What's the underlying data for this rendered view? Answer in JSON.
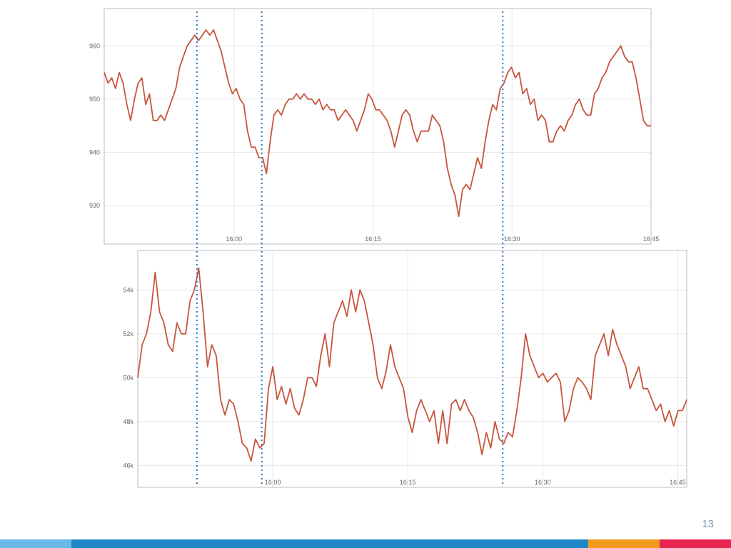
{
  "page": {
    "number": "13"
  },
  "colors": {
    "line": "#c8553d",
    "marker": "#1f77c4",
    "grid": "#e6e6e6",
    "frame": "#bdbdbd",
    "footer": [
      "#6bb7e8",
      "#1f87c8",
      "#f39b1e",
      "#e8264f"
    ]
  },
  "markers": {
    "times": [
      "15:56",
      "16:03",
      "16:29"
    ]
  },
  "chart_data": [
    {
      "type": "line",
      "title": "",
      "xlabel": "",
      "ylabel": "",
      "xlim": [
        "15:46",
        "16:45"
      ],
      "ylim": [
        922.8,
        967.0
      ],
      "xticks": [
        "16:00",
        "16:15",
        "16:30",
        "16:45"
      ],
      "yticks": [
        930,
        940,
        950,
        960
      ],
      "ytick_labels": [
        "930",
        "940",
        "950",
        "960"
      ],
      "grid": true,
      "series": [
        {
          "values": [
            [
              0,
              955
            ],
            [
              1,
              953
            ],
            [
              2,
              954
            ],
            [
              3,
              952
            ],
            [
              4,
              955
            ],
            [
              5,
              953
            ],
            [
              6,
              949
            ],
            [
              7,
              946
            ],
            [
              8,
              950
            ],
            [
              9,
              953
            ],
            [
              10,
              954
            ],
            [
              11,
              949
            ],
            [
              12,
              951
            ],
            [
              13,
              946
            ],
            [
              14,
              946
            ],
            [
              15,
              947
            ],
            [
              16,
              946
            ],
            [
              17,
              948
            ],
            [
              18,
              950
            ],
            [
              19,
              952
            ],
            [
              20,
              956
            ],
            [
              21,
              958
            ],
            [
              22,
              960
            ],
            [
              23,
              961
            ],
            [
              24,
              962
            ],
            [
              25,
              961
            ],
            [
              26,
              962
            ],
            [
              27,
              963
            ],
            [
              28,
              962
            ],
            [
              29,
              963
            ],
            [
              30,
              961
            ],
            [
              31,
              959
            ],
            [
              32,
              956
            ],
            [
              33,
              953
            ],
            [
              34,
              951
            ],
            [
              35,
              952
            ],
            [
              36,
              950
            ],
            [
              37,
              949
            ],
            [
              38,
              944
            ],
            [
              39,
              941
            ],
            [
              40,
              941
            ],
            [
              41,
              939
            ],
            [
              42,
              939
            ],
            [
              43,
              936
            ],
            [
              44,
              942
            ],
            [
              45,
              947
            ],
            [
              46,
              948
            ],
            [
              47,
              947
            ],
            [
              48,
              949
            ],
            [
              49,
              950
            ],
            [
              50,
              950
            ],
            [
              51,
              951
            ],
            [
              52,
              950
            ],
            [
              53,
              951
            ],
            [
              54,
              950
            ],
            [
              55,
              950
            ],
            [
              56,
              949
            ],
            [
              57,
              950
            ],
            [
              58,
              948
            ],
            [
              59,
              949
            ],
            [
              60,
              948
            ],
            [
              61,
              948
            ],
            [
              62,
              946
            ],
            [
              63,
              947
            ],
            [
              64,
              948
            ],
            [
              65,
              947
            ],
            [
              66,
              946
            ],
            [
              67,
              944
            ],
            [
              68,
              946
            ],
            [
              69,
              948
            ],
            [
              70,
              951
            ],
            [
              71,
              950
            ],
            [
              72,
              948
            ],
            [
              73,
              948
            ],
            [
              74,
              947
            ],
            [
              75,
              946
            ],
            [
              76,
              944
            ],
            [
              77,
              941
            ],
            [
              78,
              944
            ],
            [
              79,
              947
            ],
            [
              80,
              948
            ],
            [
              81,
              947
            ],
            [
              82,
              944
            ],
            [
              83,
              942
            ],
            [
              84,
              944
            ],
            [
              85,
              944
            ],
            [
              86,
              944
            ],
            [
              87,
              947
            ],
            [
              88,
              946
            ],
            [
              89,
              945
            ],
            [
              90,
              942
            ],
            [
              91,
              937
            ],
            [
              92,
              934
            ],
            [
              93,
              932
            ],
            [
              94,
              928
            ],
            [
              95,
              933
            ],
            [
              96,
              934
            ],
            [
              97,
              933
            ],
            [
              98,
              936
            ],
            [
              99,
              939
            ],
            [
              100,
              937
            ],
            [
              101,
              942
            ],
            [
              102,
              946
            ],
            [
              103,
              949
            ],
            [
              104,
              948
            ],
            [
              105,
              952
            ],
            [
              106,
              953
            ],
            [
              107,
              955
            ],
            [
              108,
              956
            ],
            [
              109,
              954
            ],
            [
              110,
              955
            ],
            [
              111,
              951
            ],
            [
              112,
              952
            ],
            [
              113,
              949
            ],
            [
              114,
              950
            ],
            [
              115,
              946
            ],
            [
              116,
              947
            ],
            [
              117,
              946
            ],
            [
              118,
              942
            ],
            [
              119,
              942
            ],
            [
              120,
              944
            ],
            [
              121,
              945
            ],
            [
              122,
              944
            ],
            [
              123,
              946
            ],
            [
              124,
              947
            ],
            [
              125,
              949
            ],
            [
              126,
              950
            ],
            [
              127,
              948
            ],
            [
              128,
              947
            ],
            [
              129,
              947
            ],
            [
              130,
              951
            ],
            [
              131,
              952
            ],
            [
              132,
              954
            ],
            [
              133,
              955
            ],
            [
              134,
              957
            ],
            [
              135,
              958
            ],
            [
              136,
              959
            ],
            [
              137,
              960
            ],
            [
              138,
              958
            ],
            [
              139,
              957
            ],
            [
              140,
              957
            ],
            [
              141,
              954
            ],
            [
              142,
              950
            ],
            [
              143,
              946
            ],
            [
              144,
              945
            ],
            [
              145,
              945
            ]
          ]
        }
      ]
    },
    {
      "type": "line",
      "title": "",
      "xlabel": "",
      "ylabel": "",
      "xlim": [
        "15:45",
        "16:46"
      ],
      "ylim": [
        45.0,
        55.8
      ],
      "xticks": [
        "16:00",
        "16:15",
        "16:30",
        "16:45"
      ],
      "yticks": [
        46,
        48,
        50,
        52,
        54
      ],
      "ytick_labels": [
        "46k",
        "48k",
        "50k",
        "52k",
        "54k"
      ],
      "grid": true,
      "series": [
        {
          "values": [
            [
              0,
              50.0
            ],
            [
              1,
              51.5
            ],
            [
              2,
              52.0
            ],
            [
              3,
              53.0
            ],
            [
              4,
              54.8
            ],
            [
              5,
              53.0
            ],
            [
              6,
              52.5
            ],
            [
              7,
              51.5
            ],
            [
              8,
              51.2
            ],
            [
              9,
              52.5
            ],
            [
              10,
              52.0
            ],
            [
              11,
              52.0
            ],
            [
              12,
              53.5
            ],
            [
              13,
              54.0
            ],
            [
              14,
              55.0
            ],
            [
              15,
              53.0
            ],
            [
              16,
              50.5
            ],
            [
              17,
              51.5
            ],
            [
              18,
              51.0
            ],
            [
              19,
              49.0
            ],
            [
              20,
              48.3
            ],
            [
              21,
              49.0
            ],
            [
              22,
              48.8
            ],
            [
              23,
              48.0
            ],
            [
              24,
              47.0
            ],
            [
              25,
              46.8
            ],
            [
              26,
              46.2
            ],
            [
              27,
              47.2
            ],
            [
              28,
              46.8
            ],
            [
              29,
              47.0
            ],
            [
              30,
              49.5
            ],
            [
              31,
              50.5
            ],
            [
              32,
              49.0
            ],
            [
              33,
              49.6
            ],
            [
              34,
              48.8
            ],
            [
              35,
              49.5
            ],
            [
              36,
              48.6
            ],
            [
              37,
              48.3
            ],
            [
              38,
              49.0
            ],
            [
              39,
              50.0
            ],
            [
              40,
              50.0
            ],
            [
              41,
              49.6
            ],
            [
              42,
              51.0
            ],
            [
              43,
              52.0
            ],
            [
              44,
              50.5
            ],
            [
              45,
              52.5
            ],
            [
              46,
              53.0
            ],
            [
              47,
              53.5
            ],
            [
              48,
              52.8
            ],
            [
              49,
              54.0
            ],
            [
              50,
              53.0
            ],
            [
              51,
              54.0
            ],
            [
              52,
              53.5
            ],
            [
              53,
              52.5
            ],
            [
              54,
              51.5
            ],
            [
              55,
              50.0
            ],
            [
              56,
              49.5
            ],
            [
              57,
              50.3
            ],
            [
              58,
              51.5
            ],
            [
              59,
              50.5
            ],
            [
              60,
              50.0
            ],
            [
              61,
              49.5
            ],
            [
              62,
              48.2
            ],
            [
              63,
              47.5
            ],
            [
              64,
              48.5
            ],
            [
              65,
              49.0
            ],
            [
              66,
              48.5
            ],
            [
              67,
              48.0
            ],
            [
              68,
              48.5
            ],
            [
              69,
              47.0
            ],
            [
              70,
              48.5
            ],
            [
              71,
              47.0
            ],
            [
              72,
              48.8
            ],
            [
              73,
              49.0
            ],
            [
              74,
              48.5
            ],
            [
              75,
              49.0
            ],
            [
              76,
              48.5
            ],
            [
              77,
              48.2
            ],
            [
              78,
              47.5
            ],
            [
              79,
              46.5
            ],
            [
              80,
              47.5
            ],
            [
              81,
              46.8
            ],
            [
              82,
              48.0
            ],
            [
              83,
              47.2
            ],
            [
              84,
              47.0
            ],
            [
              85,
              47.5
            ],
            [
              86,
              47.3
            ],
            [
              87,
              48.5
            ],
            [
              88,
              50.0
            ],
            [
              89,
              52.0
            ],
            [
              90,
              51.0
            ],
            [
              91,
              50.5
            ],
            [
              92,
              50.0
            ],
            [
              93,
              50.2
            ],
            [
              94,
              49.8
            ],
            [
              95,
              50.0
            ],
            [
              96,
              50.2
            ],
            [
              97,
              49.8
            ],
            [
              98,
              48.0
            ],
            [
              99,
              48.5
            ],
            [
              100,
              49.5
            ],
            [
              101,
              50.0
            ],
            [
              102,
              49.8
            ],
            [
              103,
              49.5
            ],
            [
              104,
              49.0
            ],
            [
              105,
              51.0
            ],
            [
              106,
              51.5
            ],
            [
              107,
              52.0
            ],
            [
              108,
              51.0
            ],
            [
              109,
              52.2
            ],
            [
              110,
              51.5
            ],
            [
              111,
              51.0
            ],
            [
              112,
              50.5
            ],
            [
              113,
              49.5
            ],
            [
              114,
              50.0
            ],
            [
              115,
              50.5
            ],
            [
              116,
              49.5
            ],
            [
              117,
              49.5
            ],
            [
              118,
              49.0
            ],
            [
              119,
              48.5
            ],
            [
              120,
              48.8
            ],
            [
              121,
              48.0
            ],
            [
              122,
              48.5
            ],
            [
              123,
              47.8
            ],
            [
              124,
              48.5
            ],
            [
              125,
              48.5
            ],
            [
              126,
              49.0
            ]
          ]
        }
      ]
    }
  ]
}
